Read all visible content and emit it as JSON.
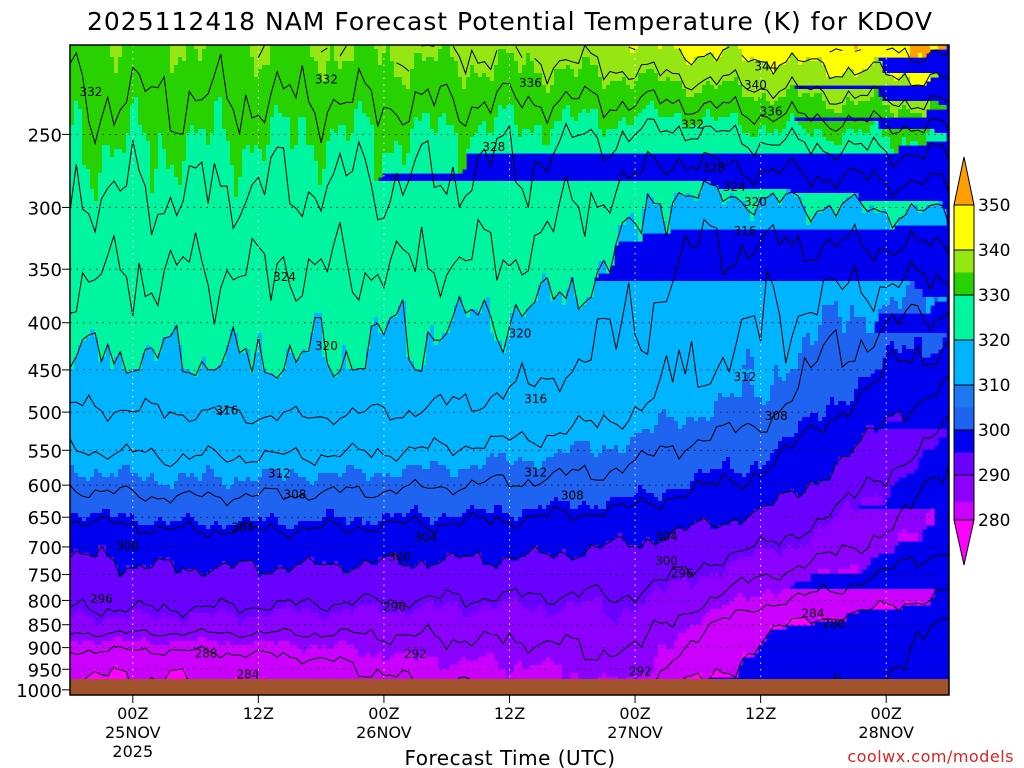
{
  "chart_data": {
    "type": "filled-contour",
    "title": "2025112418 NAM Forecast Potential Temperature (K) for KDOV",
    "xlabel": "Forecast Time (UTC)",
    "ylabel": "",
    "credit": "coolwx.com/models",
    "y_axis": {
      "units": "hPa",
      "range": [
        1013,
        200
      ],
      "ticks": [
        250,
        300,
        350,
        400,
        450,
        500,
        550,
        600,
        650,
        700,
        750,
        800,
        850,
        900,
        950,
        1000
      ]
    },
    "x_axis": {
      "units": "hours since 2025112418",
      "range": [
        0,
        84
      ],
      "ticks": [
        {
          "hour": 6,
          "line1": "00Z",
          "line2": "25NOV",
          "line3": "2025"
        },
        {
          "hour": 18,
          "line1": "12Z",
          "line2": "",
          "line3": ""
        },
        {
          "hour": 30,
          "line1": "00Z",
          "line2": "26NOV",
          "line3": ""
        },
        {
          "hour": 42,
          "line1": "12Z",
          "line2": "",
          "line3": ""
        },
        {
          "hour": 54,
          "line1": "00Z",
          "line2": "27NOV",
          "line3": ""
        },
        {
          "hour": 66,
          "line1": "12Z",
          "line2": "",
          "line3": ""
        },
        {
          "hour": 78,
          "line1": "00Z",
          "line2": "28NOV",
          "line3": ""
        }
      ]
    },
    "colorbar": {
      "levels": [
        280,
        290,
        300,
        310,
        320,
        330,
        340,
        350
      ],
      "fills": [
        "#cc00ff",
        "#8b00ff",
        "#6a00ff",
        "#0000f0",
        "#1e64f0",
        "#00b4ff",
        "#00f5a0",
        "#28d200",
        "#96e614",
        "#ffff00",
        "#ffa000"
      ],
      "under_color": "#ff00ff",
      "over_color": "#ffa000"
    },
    "contour_interval": 4,
    "contour_labels": [
      {
        "value": "344",
        "hour": 66.5,
        "p": 211
      },
      {
        "value": "340",
        "hour": 65.5,
        "p": 221
      },
      {
        "value": "336",
        "hour": 67,
        "p": 236
      },
      {
        "value": "336",
        "hour": 44,
        "p": 220
      },
      {
        "value": "332",
        "hour": 2,
        "p": 225
      },
      {
        "value": "332",
        "hour": 24.5,
        "p": 218
      },
      {
        "value": "332",
        "hour": 59.5,
        "p": 244
      },
      {
        "value": "328",
        "hour": 40.5,
        "p": 258
      },
      {
        "value": "328",
        "hour": 61.5,
        "p": 272
      },
      {
        "value": "324",
        "hour": 63.5,
        "p": 285
      },
      {
        "value": "320",
        "hour": 65.5,
        "p": 296
      },
      {
        "value": "316",
        "hour": 64.5,
        "p": 318
      },
      {
        "value": "324",
        "hour": 20.5,
        "p": 357
      },
      {
        "value": "320",
        "hour": 24.5,
        "p": 424
      },
      {
        "value": "320",
        "hour": 43,
        "p": 411
      },
      {
        "value": "316",
        "hour": 44.5,
        "p": 484
      },
      {
        "value": "316",
        "hour": 15,
        "p": 498
      },
      {
        "value": "312",
        "hour": 64.5,
        "p": 458
      },
      {
        "value": "308",
        "hour": 67.5,
        "p": 505
      },
      {
        "value": "312",
        "hour": 20,
        "p": 583
      },
      {
        "value": "312",
        "hour": 44.5,
        "p": 581
      },
      {
        "value": "308",
        "hour": 21.5,
        "p": 614
      },
      {
        "value": "308",
        "hour": 48,
        "p": 616
      },
      {
        "value": "304",
        "hour": 16.5,
        "p": 667
      },
      {
        "value": "304",
        "hour": 34,
        "p": 684
      },
      {
        "value": "304",
        "hour": 57,
        "p": 682
      },
      {
        "value": "300",
        "hour": 5.5,
        "p": 698
      },
      {
        "value": "300",
        "hour": 31.5,
        "p": 718
      },
      {
        "value": "300",
        "hour": 57,
        "p": 725
      },
      {
        "value": "296",
        "hour": 58.5,
        "p": 748
      },
      {
        "value": "296",
        "hour": 3,
        "p": 797
      },
      {
        "value": "296",
        "hour": 31,
        "p": 813
      },
      {
        "value": "292",
        "hour": 33,
        "p": 915
      },
      {
        "value": "292",
        "hour": 54.5,
        "p": 955
      },
      {
        "value": "288",
        "hour": 13,
        "p": 913
      },
      {
        "value": "284",
        "hour": 17,
        "p": 963
      },
      {
        "value": "284",
        "hour": 71,
        "p": 827
      },
      {
        "value": "280",
        "hour": 73,
        "p": 848
      }
    ]
  }
}
